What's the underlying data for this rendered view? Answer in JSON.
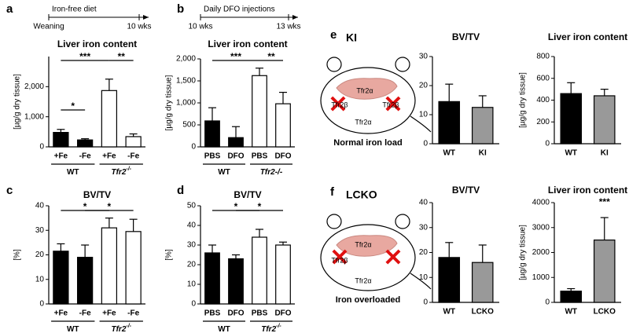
{
  "chart_data": [
    {
      "type": "bar",
      "panel": "a",
      "title": "Liver iron content",
      "ylabel": "[µg/g dry tissue]",
      "timeline": {
        "label": "Iron-free diet",
        "start": "Weaning",
        "end": "10 wks"
      },
      "categories": [
        "+Fe",
        "-Fe",
        "+Fe",
        "-Fe"
      ],
      "values": [
        480,
        230,
        1870,
        340
      ],
      "errors": [
        100,
        40,
        380,
        90
      ],
      "colors": [
        "#000000",
        "#000000",
        "#ffffff",
        "#ffffff"
      ],
      "groups": [
        {
          "label": "WT"
        },
        {
          "label": "Tfr2",
          "sup": "-/-"
        }
      ],
      "annotations": [
        "*",
        "***",
        "**"
      ],
      "ylim": [
        0,
        3000
      ],
      "yticks": [
        0,
        {
          "value": 1000,
          "label": "1,000"
        },
        {
          "value": 2000,
          "label": "2,000"
        }
      ]
    },
    {
      "type": "bar",
      "panel": "b",
      "title": "Liver iron content",
      "ylabel": "[µg/g dry tissue]",
      "timeline": {
        "label": "Daily DFO injections",
        "start": "10 wks",
        "end": "13 wks"
      },
      "categories": [
        "PBS",
        "DFO",
        "PBS",
        "DFO"
      ],
      "values": [
        590,
        210,
        1620,
        980
      ],
      "errors": [
        300,
        250,
        170,
        260
      ],
      "colors": [
        "#000000",
        "#000000",
        "#ffffff",
        "#ffffff"
      ],
      "groups": [
        {
          "label": "WT"
        },
        {
          "label": "Tfr2-/-"
        }
      ],
      "annotations": [
        "***",
        "**"
      ],
      "ylim": [
        0,
        2000
      ],
      "yticks": [
        0,
        500,
        {
          "value": 1000,
          "label": "1,000"
        },
        {
          "value": 1500,
          "label": "1,500"
        },
        {
          "value": 2000,
          "label": "2,000"
        }
      ]
    },
    {
      "type": "bar",
      "panel": "c",
      "title": "BV/TV",
      "ylabel": "[%]",
      "categories": [
        "+Fe",
        "-Fe",
        "+Fe",
        "-Fe"
      ],
      "values": [
        21.5,
        19,
        31,
        29.5
      ],
      "errors": [
        3,
        5,
        4,
        5
      ],
      "colors": [
        "#000000",
        "#000000",
        "#ffffff",
        "#ffffff"
      ],
      "groups": [
        {
          "label": "WT"
        },
        {
          "label": "Tfr2",
          "sup": "-/-"
        }
      ],
      "annotations": [
        "*",
        "*"
      ],
      "ylim": [
        0,
        40
      ],
      "yticks": [
        0,
        10,
        20,
        30,
        40
      ]
    },
    {
      "type": "bar",
      "panel": "d",
      "title": "BV/TV",
      "ylabel": "[%]",
      "categories": [
        "PBS",
        "DFO",
        "PBS",
        "DFO"
      ],
      "values": [
        26,
        23,
        34,
        30
      ],
      "errors": [
        4,
        2,
        4,
        1.5
      ],
      "colors": [
        "#000000",
        "#000000",
        "#ffffff",
        "#ffffff"
      ],
      "groups": [
        {
          "label": "WT"
        },
        {
          "label": "Tfr2",
          "sup": "-/-"
        }
      ],
      "annotations": [
        "*",
        "*"
      ],
      "ylim": [
        0,
        50
      ],
      "yticks": [
        0,
        10,
        20,
        30,
        40,
        50
      ]
    },
    {
      "type": "bar",
      "title": "BV/TV",
      "ylabel": "[%]",
      "categories": [
        "WT",
        "KI"
      ],
      "values": [
        14.5,
        12.5
      ],
      "errors": [
        6,
        4
      ],
      "colors": [
        "#000000",
        "#999999"
      ],
      "ylim": [
        0,
        30
      ],
      "yticks": [
        0,
        10,
        20,
        30
      ]
    },
    {
      "type": "bar",
      "title": "Liver iron content",
      "ylabel": "[µg/g dry tissue]",
      "categories": [
        "WT",
        "KI"
      ],
      "values": [
        460,
        440
      ],
      "errors": [
        100,
        60
      ],
      "colors": [
        "#000000",
        "#999999"
      ],
      "ylim": [
        0,
        800
      ],
      "yticks": [
        0,
        200,
        400,
        600,
        800
      ]
    },
    {
      "type": "bar",
      "title": "BV/TV",
      "ylabel": "[%]",
      "categories": [
        "WT",
        "LCKO"
      ],
      "values": [
        18,
        16
      ],
      "errors": [
        6,
        7
      ],
      "colors": [
        "#000000",
        "#999999"
      ],
      "ylim": [
        0,
        40
      ],
      "yticks": [
        0,
        10,
        20,
        30,
        40
      ]
    },
    {
      "type": "bar",
      "title": "Liver iron content",
      "ylabel": "[µg/g dry tissue]",
      "categories": [
        "WT",
        "LCKO"
      ],
      "values": [
        450,
        2500
      ],
      "errors": [
        100,
        900
      ],
      "colors": [
        "#000000",
        "#999999"
      ],
      "annotations": [
        "***"
      ],
      "ylim": [
        0,
        4000
      ],
      "yticks": [
        0,
        1000,
        2000,
        3000,
        4000
      ]
    }
  ],
  "diagrams": [
    {
      "panel": "e",
      "title": "KI",
      "labels": [
        "Tfr2α",
        "Tfr2β",
        "Tfr2β",
        "Tfr2α"
      ],
      "caption": "Normal iron load"
    },
    {
      "panel": "f",
      "title": "LCKO",
      "labels": [
        "Tfr2α",
        "Tfr2β",
        "Tfr2α"
      ],
      "caption": "Iron overloaded"
    }
  ]
}
